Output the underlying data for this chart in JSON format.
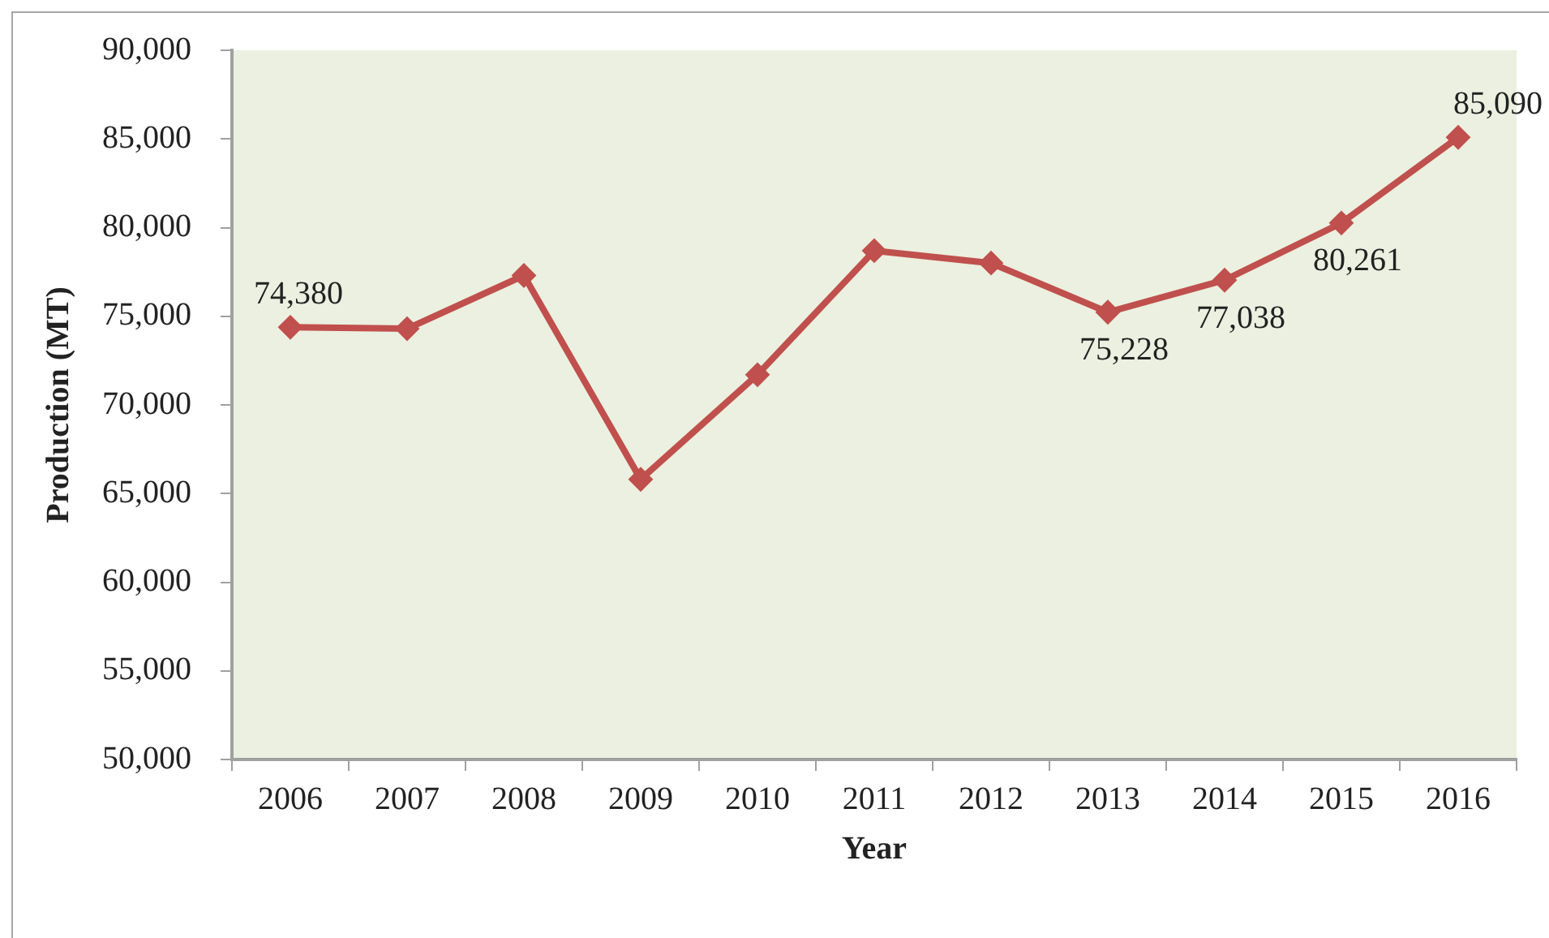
{
  "chart_data": {
    "type": "line",
    "xlabel": "Year",
    "ylabel": "Production (MT)",
    "categories": [
      "2006",
      "2007",
      "2008",
      "2009",
      "2010",
      "2011",
      "2012",
      "2013",
      "2014",
      "2015",
      "2016"
    ],
    "series": [
      {
        "color": "#c0504d",
        "values": [
          74380,
          74300,
          77300,
          65800,
          71700,
          78700,
          78000,
          75228,
          77038,
          80261,
          85090
        ],
        "value_labels": [
          "74,380",
          null,
          null,
          null,
          null,
          null,
          null,
          "75,228",
          "77,038",
          "80,261",
          "85,090"
        ]
      }
    ],
    "ylim": [
      50000,
      90000
    ],
    "yticks": [
      {
        "value": 50000,
        "label": "50,000"
      },
      {
        "value": 55000,
        "label": "55,000"
      },
      {
        "value": 60000,
        "label": "60,000"
      },
      {
        "value": 65000,
        "label": "65,000"
      },
      {
        "value": 70000,
        "label": "70,000"
      },
      {
        "value": 75000,
        "label": "75,000"
      },
      {
        "value": 80000,
        "label": "80,000"
      },
      {
        "value": 85000,
        "label": "85,000"
      },
      {
        "value": 90000,
        "label": "90,000"
      }
    ],
    "grid": false,
    "legend": false,
    "marker": "diamond",
    "line_style": "solid"
  }
}
